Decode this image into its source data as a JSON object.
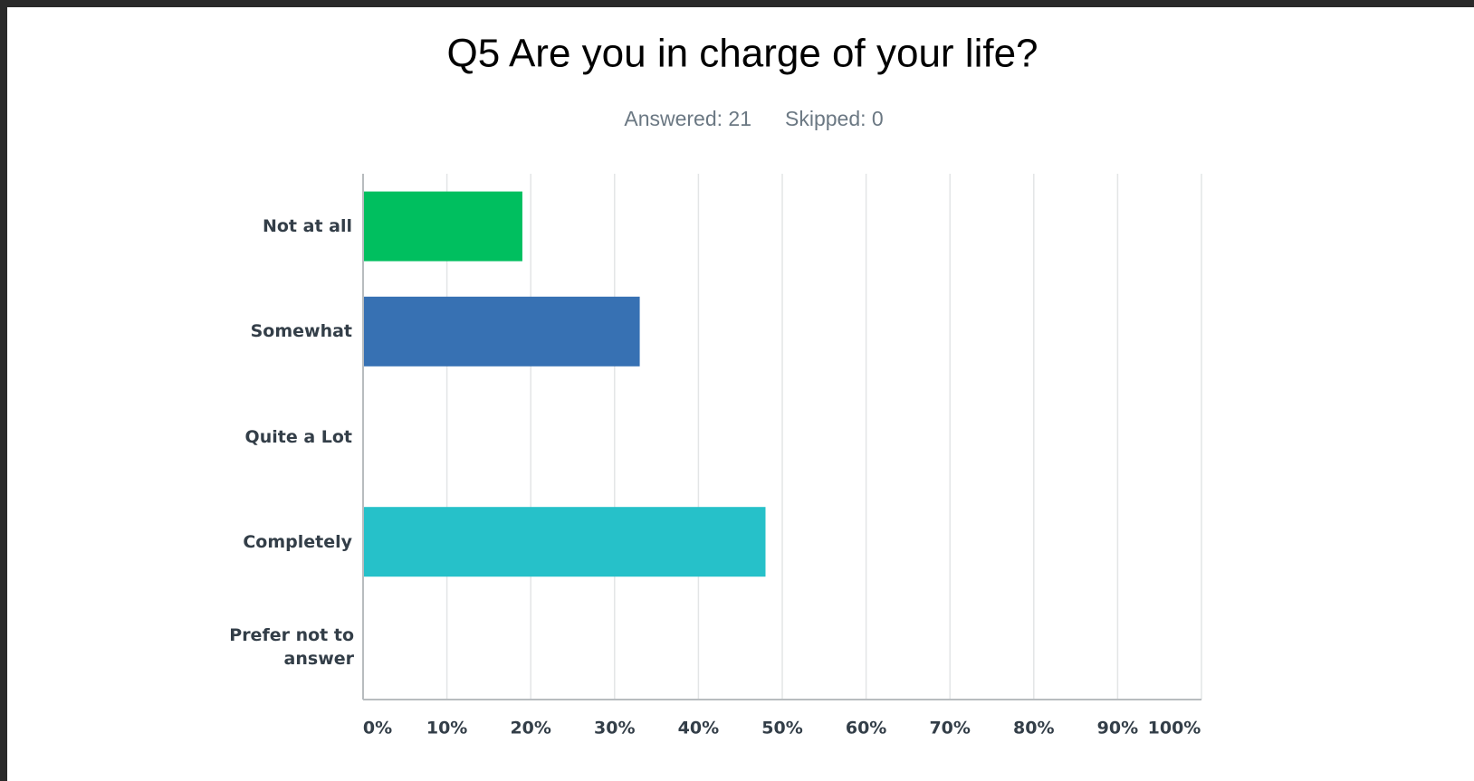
{
  "chart_data": {
    "type": "hbar",
    "title": "Q5 Are you in charge of your life?",
    "answered": "Answered: 21",
    "skipped": "Skipped: 0",
    "categories": [
      "Not at all",
      "Somewhat",
      "Quite a Lot",
      "Completely",
      "Prefer not to answer"
    ],
    "values": [
      19,
      33,
      0,
      48,
      0
    ],
    "colors": [
      "#00bf5f",
      "#3771b3",
      null,
      "#26c1c9",
      null
    ],
    "xlim": [
      0,
      100
    ],
    "xticks": [
      {
        "value": 0,
        "label": "0%"
      },
      {
        "value": 10,
        "label": "10%"
      },
      {
        "value": 20,
        "label": "20%"
      },
      {
        "value": 30,
        "label": "30%"
      },
      {
        "value": 40,
        "label": "40%"
      },
      {
        "value": 50,
        "label": "50%"
      },
      {
        "value": 60,
        "label": "60%"
      },
      {
        "value": 70,
        "label": "70%"
      },
      {
        "value": 80,
        "label": "80%"
      },
      {
        "value": 90,
        "label": "90%"
      },
      {
        "value": 100,
        "label": "100%"
      }
    ],
    "grid": true
  }
}
